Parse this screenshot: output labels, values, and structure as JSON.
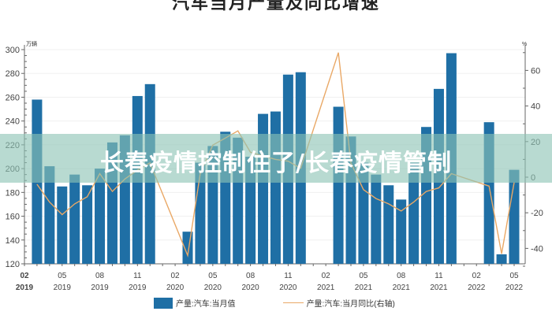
{
  "chart_data": {
    "type": "bar+line",
    "title": "汽车当月产量及同比增速",
    "left_axis": {
      "unit": "万辆",
      "ticks": [
        120,
        140,
        160,
        180,
        200,
        220,
        240,
        260,
        280,
        300
      ],
      "range": [
        120,
        300
      ]
    },
    "right_axis": {
      "unit": "%",
      "ticks": [
        -40,
        -20,
        0,
        20,
        40,
        60
      ],
      "range": [
        -50,
        70
      ]
    },
    "x_tick_labels": [
      {
        "month": "02",
        "year": "2019"
      },
      {
        "month": "05",
        "year": "2019"
      },
      {
        "month": "08",
        "year": "2019"
      },
      {
        "month": "11",
        "year": "2019"
      },
      {
        "month": "02",
        "year": "2020"
      },
      {
        "month": "05",
        "year": "2020"
      },
      {
        "month": "08",
        "year": "2020"
      },
      {
        "month": "11",
        "year": "2020"
      },
      {
        "month": "02",
        "year": "2021"
      },
      {
        "month": "05",
        "year": "2021"
      },
      {
        "month": "08",
        "year": "2021"
      },
      {
        "month": "11",
        "year": "2021"
      },
      {
        "month": "02",
        "year": "2022"
      },
      {
        "month": "05",
        "year": "2022"
      }
    ],
    "categories": [
      "2019-02",
      "2019-03",
      "2019-04",
      "2019-05",
      "2019-06",
      "2019-07",
      "2019-08",
      "2019-09",
      "2019-10",
      "2019-11",
      "2019-12",
      "2020-01",
      "2020-02",
      "2020-03",
      "2020-04",
      "2020-05",
      "2020-06",
      "2020-07",
      "2020-08",
      "2020-09",
      "2020-10",
      "2020-11",
      "2020-12",
      "2021-01",
      "2021-02",
      "2021-03",
      "2021-04",
      "2021-05",
      "2021-06",
      "2021-07",
      "2021-08",
      "2021-09",
      "2021-10",
      "2021-11",
      "2021-12",
      "2022-01",
      "2022-02",
      "2022-03",
      "2022-04",
      "2022-05"
    ],
    "series": [
      {
        "name": "产量:汽车:当月值",
        "type": "bar",
        "axis": "left",
        "color": "#1f6fa5",
        "values": [
          null,
          258,
          202,
          185,
          195,
          186,
          200,
          222,
          228,
          261,
          271,
          null,
          null,
          147,
          205,
          219,
          231,
          226,
          210,
          246,
          248,
          279,
          281,
          null,
          null,
          252,
          227,
          205,
          195,
          186,
          174,
          205,
          235,
          267,
          297,
          null,
          null,
          239,
          128,
          199
        ]
      },
      {
        "name": "产量:汽车:当月同比(右轴)",
        "type": "line",
        "axis": "right",
        "color": "#e9a866",
        "values": [
          null,
          -4,
          -14,
          -21,
          -15,
          -11,
          2,
          -8,
          -1,
          4,
          8,
          null,
          null,
          -44,
          2,
          18,
          22,
          26,
          14,
          12,
          10,
          9,
          5,
          null,
          null,
          70,
          8,
          -7,
          -12,
          -15,
          -19,
          -14,
          -8,
          -6,
          2,
          null,
          null,
          -5,
          -43,
          -3
        ]
      }
    ],
    "legend_position": "bottom",
    "grid": true
  },
  "overlay": {
    "banner_text": "长春疫情控制住了/长春疫情管制"
  },
  "legend": {
    "bar_label": "产量:汽车:当月值",
    "line_label": "产量:汽车:当月同比(右轴)"
  }
}
